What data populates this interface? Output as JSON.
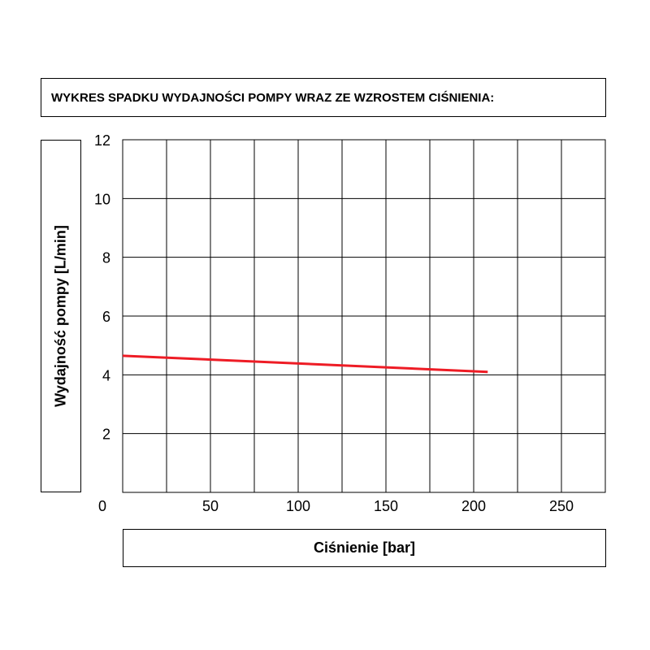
{
  "chart_data": {
    "type": "line",
    "title": "WYKRES SPADKU WYDAJNOŚCI POMPY WRAZ ZE WZROSTEM CIŚNIENIA:",
    "xlabel": "Ciśnienie [bar]",
    "ylabel": "Wydajność pompy [L/min]",
    "xlim": [
      0,
      275
    ],
    "ylim": [
      0,
      12
    ],
    "x_ticks": [
      0,
      50,
      100,
      150,
      200,
      250
    ],
    "y_ticks": [
      2,
      4,
      6,
      8,
      10,
      12
    ],
    "x_grid_step": 25,
    "y_grid_step": 2,
    "grid": true,
    "series": [
      {
        "color": "#ee1c25",
        "x": [
          0,
          208
        ],
        "y": [
          4.65,
          4.1
        ]
      }
    ]
  }
}
